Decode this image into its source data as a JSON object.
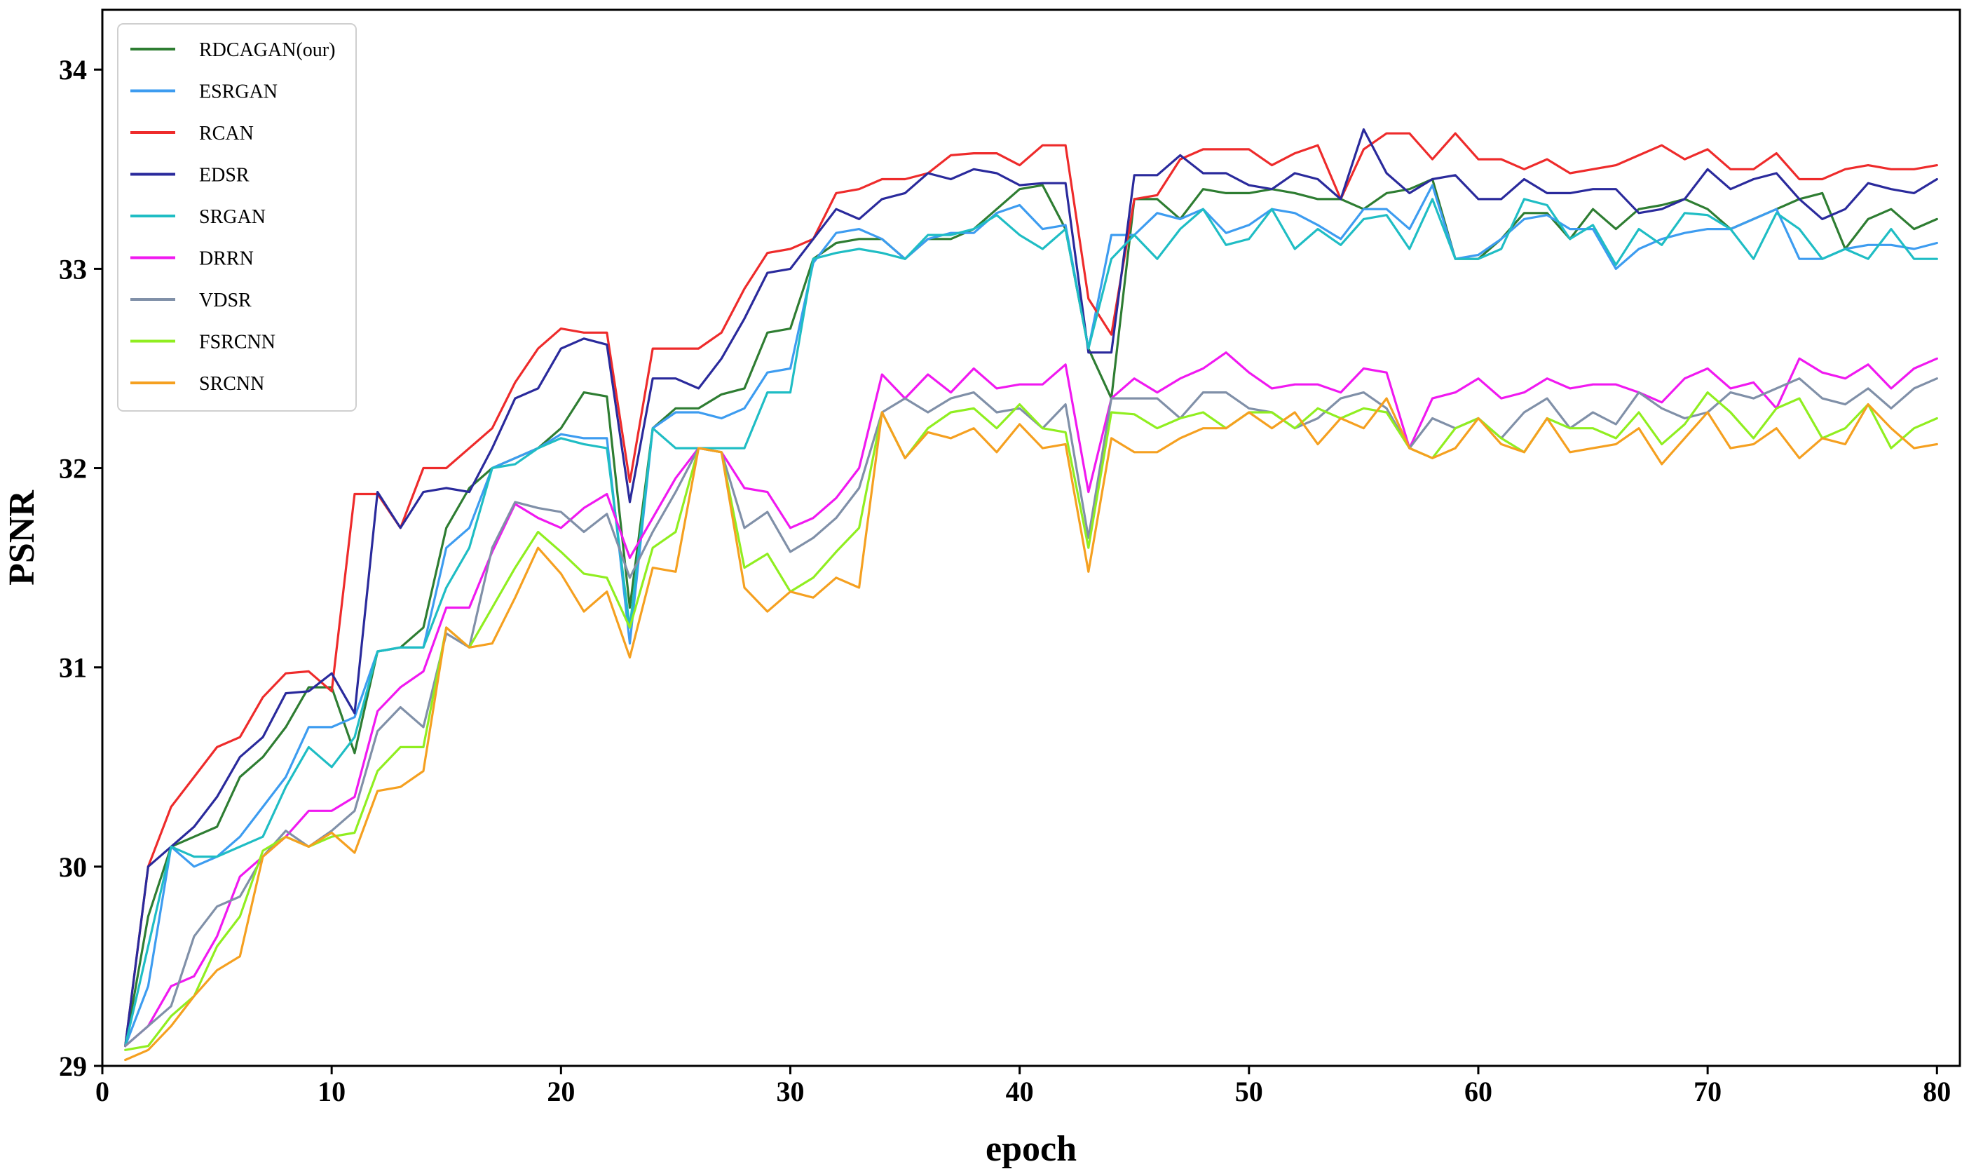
{
  "chart_data": {
    "type": "line",
    "title": "",
    "xlabel": "epoch",
    "ylabel": "PSNR",
    "xlim": [
      0,
      81
    ],
    "ylim": [
      29,
      34.3
    ],
    "xticks": [
      0,
      10,
      20,
      30,
      40,
      50,
      60,
      70,
      80
    ],
    "yticks": [
      29,
      30,
      31,
      32,
      33,
      34
    ],
    "grid": false,
    "legend_position": "upper-left",
    "x_start": 1,
    "series": [
      {
        "name": "RDCAGAN(our)",
        "color": "#2e7d32",
        "values": [
          29.1,
          29.75,
          30.1,
          30.15,
          30.2,
          30.45,
          30.55,
          30.7,
          30.9,
          30.9,
          30.57,
          31.08,
          31.1,
          31.2,
          31.7,
          31.9,
          32.0,
          32.05,
          32.1,
          32.2,
          32.38,
          32.36,
          31.3,
          32.2,
          32.3,
          32.3,
          32.37,
          32.4,
          32.68,
          32.7,
          33.05,
          33.13,
          33.15,
          33.15,
          33.05,
          33.15,
          33.15,
          33.2,
          33.3,
          33.4,
          33.42,
          33.2,
          32.6,
          32.35,
          33.35,
          33.35,
          33.25,
          33.4,
          33.38,
          33.38,
          33.4,
          33.38,
          33.35,
          33.35,
          33.3,
          33.38,
          33.4,
          33.45,
          33.05,
          33.05,
          33.15,
          33.28,
          33.28,
          33.15,
          33.3,
          33.2,
          33.3,
          33.32,
          33.35,
          33.3,
          33.2,
          33.25,
          33.3,
          33.35,
          33.38,
          33.1,
          33.25,
          33.3,
          33.2,
          33.25
        ]
      },
      {
        "name": "ESRGAN",
        "color": "#3d9cf0",
        "values": [
          29.1,
          29.4,
          30.1,
          30.0,
          30.05,
          30.15,
          30.3,
          30.45,
          30.7,
          30.7,
          30.75,
          31.08,
          31.1,
          31.1,
          31.6,
          31.7,
          32.0,
          32.05,
          32.1,
          32.17,
          32.15,
          32.15,
          31.12,
          32.2,
          32.28,
          32.28,
          32.25,
          32.3,
          32.48,
          32.5,
          33.03,
          33.18,
          33.2,
          33.15,
          33.05,
          33.15,
          33.18,
          33.18,
          33.28,
          33.32,
          33.2,
          33.22,
          32.6,
          33.17,
          33.17,
          33.28,
          33.25,
          33.3,
          33.18,
          33.22,
          33.3,
          33.28,
          33.22,
          33.15,
          33.3,
          33.3,
          33.2,
          33.42,
          33.05,
          33.07,
          33.15,
          33.25,
          33.27,
          33.2,
          33.2,
          33.0,
          33.1,
          33.15,
          33.18,
          33.2,
          33.2,
          33.25,
          33.3,
          33.05,
          33.05,
          33.1,
          33.12,
          33.12,
          33.1,
          33.13
        ]
      },
      {
        "name": "RCAN",
        "color": "#ee2b2b",
        "values": [
          29.1,
          30.0,
          30.3,
          30.45,
          30.6,
          30.65,
          30.85,
          30.97,
          30.98,
          30.88,
          31.87,
          31.87,
          31.7,
          32.0,
          32.0,
          32.1,
          32.2,
          32.43,
          32.6,
          32.7,
          32.68,
          32.68,
          31.93,
          32.6,
          32.6,
          32.6,
          32.68,
          32.9,
          33.08,
          33.1,
          33.15,
          33.38,
          33.4,
          33.45,
          33.45,
          33.48,
          33.57,
          33.58,
          33.58,
          33.52,
          33.62,
          33.62,
          32.85,
          32.67,
          33.35,
          33.37,
          33.55,
          33.6,
          33.6,
          33.6,
          33.52,
          33.58,
          33.62,
          33.35,
          33.6,
          33.68,
          33.68,
          33.55,
          33.68,
          33.55,
          33.55,
          33.5,
          33.55,
          33.48,
          33.5,
          33.52,
          33.57,
          33.62,
          33.55,
          33.6,
          33.5,
          33.5,
          33.58,
          33.45,
          33.45,
          33.5,
          33.52,
          33.5,
          33.5,
          33.52
        ]
      },
      {
        "name": "EDSR",
        "color": "#2a2a9c",
        "values": [
          29.1,
          30.0,
          30.1,
          30.2,
          30.35,
          30.55,
          30.65,
          30.87,
          30.88,
          30.97,
          30.77,
          31.88,
          31.7,
          31.88,
          31.9,
          31.88,
          32.1,
          32.35,
          32.4,
          32.6,
          32.65,
          32.62,
          31.83,
          32.45,
          32.45,
          32.4,
          32.55,
          32.75,
          32.98,
          33.0,
          33.15,
          33.3,
          33.25,
          33.35,
          33.38,
          33.48,
          33.45,
          33.5,
          33.48,
          33.42,
          33.43,
          33.43,
          32.58,
          32.58,
          33.47,
          33.47,
          33.57,
          33.48,
          33.48,
          33.42,
          33.4,
          33.48,
          33.45,
          33.35,
          33.7,
          33.48,
          33.38,
          33.45,
          33.47,
          33.35,
          33.35,
          33.45,
          33.38,
          33.38,
          33.4,
          33.4,
          33.28,
          33.3,
          33.35,
          33.5,
          33.4,
          33.45,
          33.48,
          33.35,
          33.25,
          33.3,
          33.43,
          33.4,
          33.38,
          33.45
        ]
      },
      {
        "name": "SRGAN",
        "color": "#1fbdc4",
        "values": [
          29.1,
          29.6,
          30.1,
          30.05,
          30.05,
          30.1,
          30.15,
          30.4,
          30.6,
          30.5,
          30.65,
          31.08,
          31.1,
          31.1,
          31.4,
          31.6,
          32.0,
          32.02,
          32.1,
          32.15,
          32.12,
          32.1,
          31.2,
          32.2,
          32.1,
          32.1,
          32.1,
          32.1,
          32.38,
          32.38,
          33.05,
          33.08,
          33.1,
          33.08,
          33.05,
          33.17,
          33.17,
          33.2,
          33.27,
          33.17,
          33.1,
          33.2,
          32.6,
          33.05,
          33.17,
          33.05,
          33.2,
          33.3,
          33.12,
          33.15,
          33.3,
          33.1,
          33.2,
          33.12,
          33.25,
          33.27,
          33.1,
          33.35,
          33.05,
          33.05,
          33.1,
          33.35,
          33.32,
          33.15,
          33.22,
          33.02,
          33.2,
          33.12,
          33.28,
          33.27,
          33.2,
          33.05,
          33.28,
          33.2,
          33.05,
          33.1,
          33.05,
          33.2,
          33.05,
          33.05
        ]
      },
      {
        "name": "DRRN",
        "color": "#f019f0",
        "values": [
          29.1,
          29.2,
          29.4,
          29.45,
          29.65,
          29.95,
          30.05,
          30.15,
          30.28,
          30.28,
          30.35,
          30.78,
          30.9,
          30.98,
          31.3,
          31.3,
          31.58,
          31.82,
          31.75,
          31.7,
          31.8,
          31.87,
          31.55,
          31.75,
          31.95,
          32.1,
          32.08,
          31.9,
          31.88,
          31.7,
          31.75,
          31.85,
          32.0,
          32.47,
          32.35,
          32.47,
          32.38,
          32.5,
          32.4,
          32.42,
          32.42,
          32.52,
          31.88,
          32.35,
          32.45,
          32.38,
          32.45,
          32.5,
          32.58,
          32.48,
          32.4,
          32.42,
          32.42,
          32.38,
          32.5,
          32.48,
          32.1,
          32.35,
          32.38,
          32.45,
          32.35,
          32.38,
          32.45,
          32.4,
          32.42,
          32.42,
          32.38,
          32.33,
          32.45,
          32.5,
          32.4,
          32.43,
          32.3,
          32.55,
          32.48,
          32.45,
          32.52,
          32.4,
          32.5,
          32.55
        ]
      },
      {
        "name": "VDSR",
        "color": "#8090a8",
        "values": [
          29.1,
          29.2,
          29.3,
          29.65,
          29.8,
          29.85,
          30.05,
          30.18,
          30.1,
          30.18,
          30.28,
          30.68,
          30.8,
          30.7,
          31.17,
          31.1,
          31.6,
          31.83,
          31.8,
          31.78,
          31.68,
          31.77,
          31.45,
          31.68,
          31.88,
          32.1,
          32.08,
          31.7,
          31.78,
          31.58,
          31.65,
          31.75,
          31.9,
          32.28,
          32.35,
          32.28,
          32.35,
          32.38,
          32.28,
          32.3,
          32.2,
          32.32,
          31.65,
          32.35,
          32.35,
          32.35,
          32.25,
          32.38,
          32.38,
          32.3,
          32.28,
          32.2,
          32.25,
          32.35,
          32.38,
          32.3,
          32.1,
          32.25,
          32.2,
          32.25,
          32.15,
          32.28,
          32.35,
          32.2,
          32.28,
          32.22,
          32.38,
          32.3,
          32.25,
          32.28,
          32.38,
          32.35,
          32.4,
          32.45,
          32.35,
          32.32,
          32.4,
          32.3,
          32.4,
          32.45
        ]
      },
      {
        "name": "FSRCNN",
        "color": "#90ee20",
        "values": [
          29.08,
          29.1,
          29.25,
          29.35,
          29.6,
          29.75,
          30.08,
          30.15,
          30.1,
          30.15,
          30.17,
          30.48,
          30.6,
          30.6,
          31.2,
          31.1,
          31.3,
          31.5,
          31.68,
          31.58,
          31.47,
          31.45,
          31.2,
          31.6,
          31.68,
          32.1,
          32.08,
          31.5,
          31.57,
          31.38,
          31.45,
          31.58,
          31.7,
          32.28,
          32.05,
          32.2,
          32.28,
          32.3,
          32.2,
          32.32,
          32.2,
          32.18,
          31.6,
          32.28,
          32.27,
          32.2,
          32.25,
          32.28,
          32.2,
          32.28,
          32.28,
          32.2,
          32.3,
          32.25,
          32.3,
          32.28,
          32.1,
          32.05,
          32.2,
          32.25,
          32.15,
          32.08,
          32.25,
          32.2,
          32.2,
          32.15,
          32.28,
          32.12,
          32.22,
          32.38,
          32.28,
          32.15,
          32.3,
          32.35,
          32.15,
          32.2,
          32.32,
          32.1,
          32.2,
          32.25
        ]
      },
      {
        "name": "SRCNN",
        "color": "#f5a020",
        "values": [
          29.03,
          29.08,
          29.2,
          29.35,
          29.48,
          29.55,
          30.05,
          30.15,
          30.1,
          30.17,
          30.07,
          30.38,
          30.4,
          30.48,
          31.2,
          31.1,
          31.12,
          31.35,
          31.6,
          31.47,
          31.28,
          31.38,
          31.05,
          31.5,
          31.48,
          32.1,
          32.08,
          31.4,
          31.28,
          31.38,
          31.35,
          31.45,
          31.4,
          32.28,
          32.05,
          32.18,
          32.15,
          32.2,
          32.08,
          32.22,
          32.1,
          32.12,
          31.48,
          32.15,
          32.08,
          32.08,
          32.15,
          32.2,
          32.2,
          32.28,
          32.2,
          32.28,
          32.12,
          32.25,
          32.2,
          32.35,
          32.1,
          32.05,
          32.1,
          32.25,
          32.12,
          32.08,
          32.25,
          32.08,
          32.1,
          32.12,
          32.2,
          32.02,
          32.15,
          32.28,
          32.1,
          32.12,
          32.2,
          32.05,
          32.15,
          32.12,
          32.32,
          32.2,
          32.1,
          32.12
        ]
      }
    ]
  }
}
